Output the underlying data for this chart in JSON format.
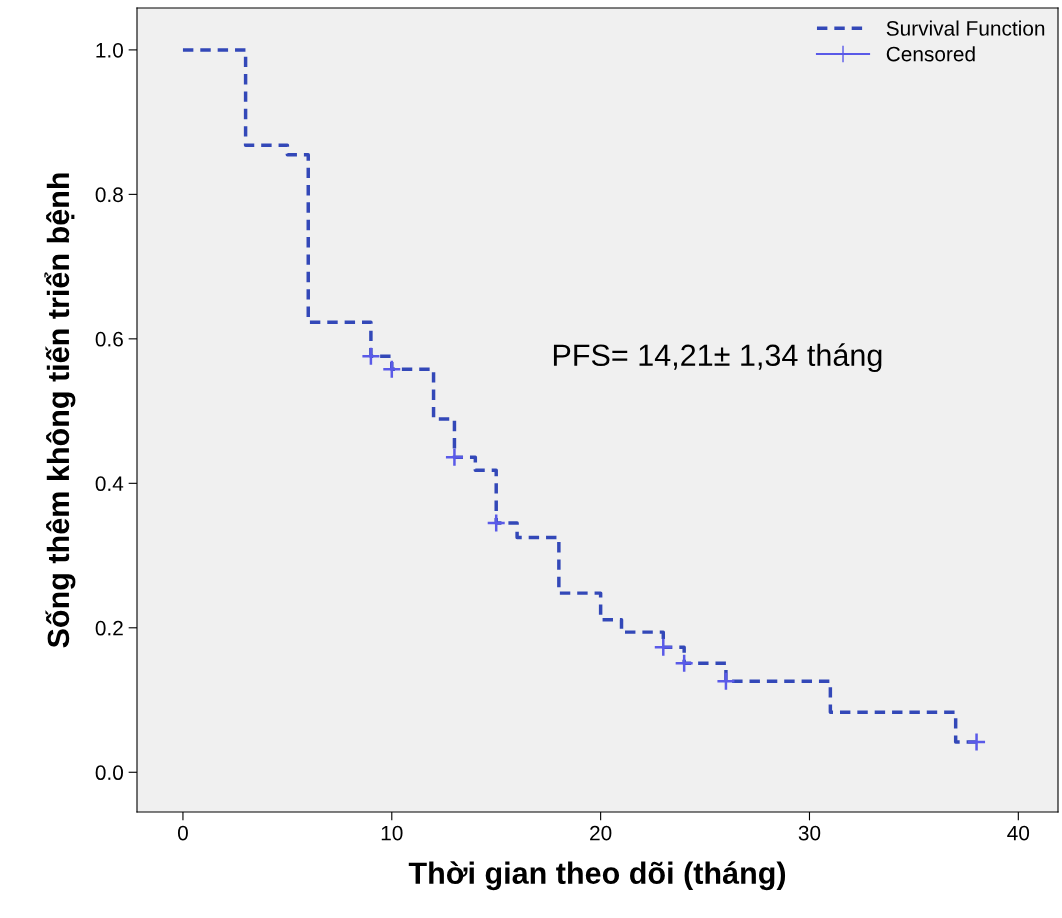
{
  "chart_data": {
    "type": "step",
    "xlabel": "Thời gian theo dõi (tháng)",
    "ylabel": "Sống thêm không tiến triển bệnh",
    "xlim": [
      -2.2,
      41.9
    ],
    "ylim": [
      -0.055,
      1.058
    ],
    "xticks": [
      0,
      10,
      20,
      30,
      40
    ],
    "yticks": [
      {
        "value": 0,
        "label": "0.0"
      },
      {
        "value": 0.2,
        "label": "0.2"
      },
      {
        "value": 0.4,
        "label": "0.4"
      },
      {
        "value": 0.6,
        "label": "0.6"
      },
      {
        "value": 0.8,
        "label": "0.8"
      },
      {
        "value": 1,
        "label": "1.0"
      }
    ],
    "grid": false,
    "legend": "top right",
    "annotations": [
      "PFS= 14,21± 1,34 tháng"
    ],
    "series": [
      {
        "name": "Survival Function",
        "color": "#3348b8",
        "line_style": "dashed",
        "marker": "none",
        "x": [
          0,
          3,
          5,
          6,
          9,
          10,
          12,
          13,
          14,
          15,
          16,
          18,
          20,
          21,
          23,
          24,
          26,
          31,
          37,
          38
        ],
        "values": [
          1.0,
          0.868,
          0.855,
          0.623,
          0.576,
          0.558,
          0.489,
          0.436,
          0.418,
          0.345,
          0.325,
          0.248,
          0.211,
          0.194,
          0.173,
          0.151,
          0.126,
          0.083,
          0.042,
          0.042
        ]
      },
      {
        "name": "Censored",
        "type": "scatter",
        "color": "#5a5ae8",
        "marker": "cross",
        "x": [
          9,
          10,
          13,
          15,
          23,
          24,
          26,
          38
        ],
        "values": [
          0.576,
          0.558,
          0.436,
          0.345,
          0.173,
          0.151,
          0.126,
          0.042
        ]
      }
    ]
  }
}
